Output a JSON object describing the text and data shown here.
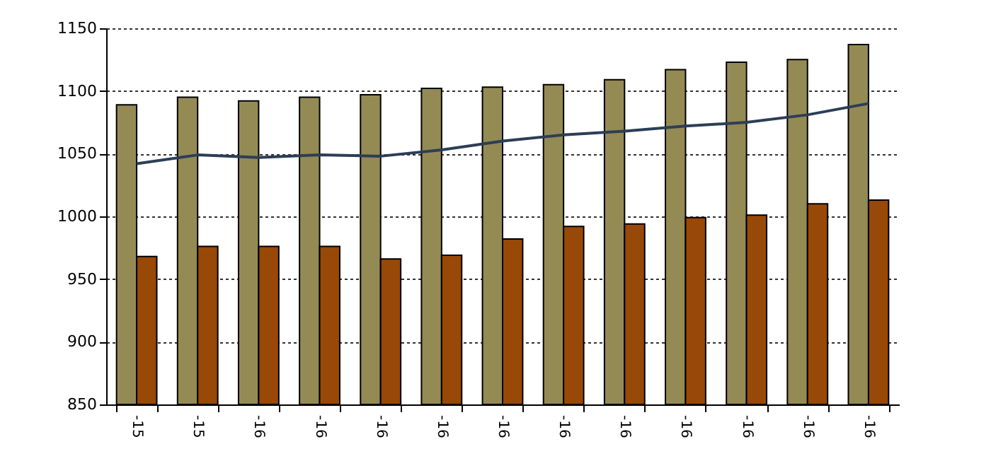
{
  "chart_data": {
    "type": "bar",
    "categories": [
      "-15",
      "-15",
      "-16",
      "-16",
      "-16",
      "-16",
      "-16",
      "-16",
      "-16",
      "-16",
      "-16",
      "-16",
      "-16"
    ],
    "series": [
      {
        "type": "bar",
        "color": "#948a54",
        "values": [
          1089,
          1095,
          1092,
          1095,
          1097,
          1102,
          1103,
          1105,
          1109,
          1117,
          1123,
          1125,
          1137
        ]
      },
      {
        "type": "bar",
        "color": "#984807",
        "values": [
          968,
          976,
          976,
          976,
          966,
          969,
          982,
          992,
          994,
          999,
          1001,
          1010,
          1013
        ]
      },
      {
        "type": "line",
        "color": "#2c3e57",
        "values": [
          1042,
          1049,
          1047,
          1049,
          1048,
          1053,
          1060,
          1065,
          1068,
          1072,
          1075,
          1081,
          1090
        ]
      }
    ],
    "ylim": [
      850,
      1150
    ],
    "yticks": [
      850,
      900,
      950,
      1000,
      1050,
      1100,
      1150
    ],
    "grid": "y",
    "legend": false
  }
}
